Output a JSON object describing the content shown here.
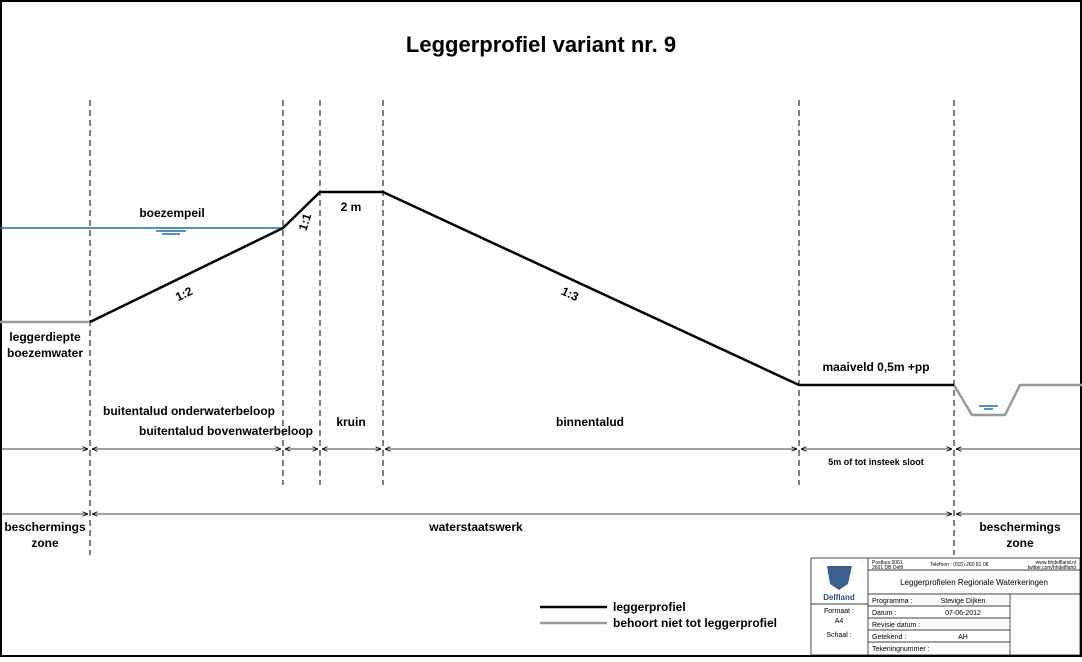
{
  "title": "Leggerprofiel variant nr. 9",
  "profile_labels": {
    "water_level": "boezempeil",
    "depth_line1": "leggerdiepte",
    "depth_line2": "boezemwater",
    "slope_outer": "1:2",
    "slope_upper": "1:1",
    "crest_width": "2 m",
    "slope_inner": "1:3",
    "ground_level": "maaiveld 0,5m +pp"
  },
  "zones": {
    "outer_under": "buitentalud onderwaterbeloop",
    "outer_above": "buitentalud bovenwaterbeloop",
    "crest": "kruin",
    "inner": "binnentalud",
    "strip": "5m of tot insteek sloot"
  },
  "areas": {
    "left_line1": "beschermings",
    "left_line2": "zone",
    "middle": "waterstaatswerk",
    "right_line1": "beschermings",
    "right_line2": "zone"
  },
  "legend": {
    "profile": "leggerprofiel",
    "not_profile": "behoort niet tot leggerprofiel"
  },
  "title_block": {
    "address1": "Postbus 3061",
    "address2": "2601 DB Delft",
    "phone": "Telefoon : (015) 260 81 08",
    "web": "www.hhdelfland.nl",
    "twitter": "twitter.com/hhdelfland",
    "logo": "Delfland",
    "project": "Leggerprofielen Regionale Waterkeringen",
    "format_label": "Formaat :",
    "format": "A4",
    "scale_label": "Schaal :",
    "program_label": "Programma :",
    "program": "Stevige Dijken",
    "date_label": "Datum :",
    "date": "07-06-2012",
    "revision_label": "Revisie datum :",
    "drawn_label": "Getekend :",
    "drawn": "AH",
    "number_label": "Tekeningnummer :"
  }
}
